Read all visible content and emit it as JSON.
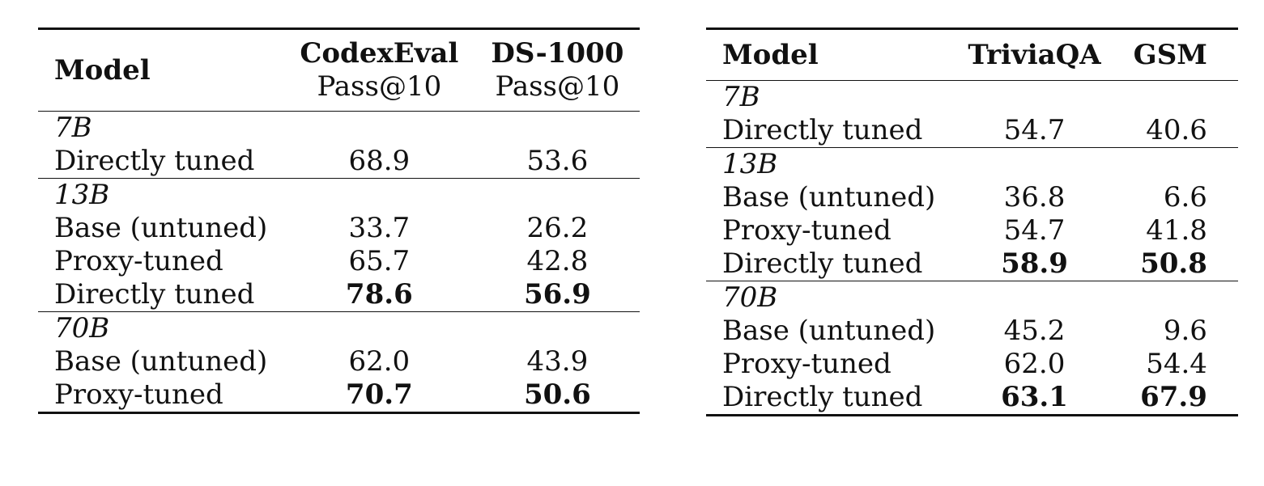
{
  "left_table": {
    "headers": {
      "model": "Model",
      "col1_title": "CodexEval",
      "col1_sub": "Pass@10",
      "col2_title": "DS-1000",
      "col2_sub": "Pass@10"
    },
    "groups": [
      {
        "label": "7B",
        "rows": [
          {
            "name": "Directly tuned",
            "v1": "68.9",
            "v2": "53.6"
          }
        ]
      },
      {
        "label": "13B",
        "rows": [
          {
            "name": "Base (untuned)",
            "v1": "33.7",
            "v2": "26.2"
          },
          {
            "name": "Proxy-tuned",
            "v1": "65.7",
            "v2": "42.8"
          },
          {
            "name": "Directly tuned",
            "v1": "78.6",
            "v2": "56.9"
          }
        ]
      },
      {
        "label": "70B",
        "rows": [
          {
            "name": "Base (untuned)",
            "v1": "62.0",
            "v2": "43.9"
          },
          {
            "name": "Proxy-tuned",
            "v1": "70.7",
            "v2": "50.6"
          }
        ]
      }
    ]
  },
  "right_table": {
    "headers": {
      "model": "Model",
      "col1_title": "TriviaQA",
      "col2_title": "GSM"
    },
    "groups": [
      {
        "label": "7B",
        "rows": [
          {
            "name": "Directly tuned",
            "v1": "54.7",
            "v2": "40.6"
          }
        ]
      },
      {
        "label": "13B",
        "rows": [
          {
            "name": "Base (untuned)",
            "v1": "36.8",
            "v2": "6.6"
          },
          {
            "name": "Proxy-tuned",
            "v1": "54.7",
            "v2": "41.8"
          },
          {
            "name": "Directly tuned",
            "v1": "58.9",
            "v2": "50.8"
          }
        ]
      },
      {
        "label": "70B",
        "rows": [
          {
            "name": "Base (untuned)",
            "v1": "45.2",
            "v2": "9.6"
          },
          {
            "name": "Proxy-tuned",
            "v1": "62.0",
            "v2": "54.4"
          },
          {
            "name": "Directly tuned",
            "v1": "63.1",
            "v2": "67.9"
          }
        ]
      }
    ]
  }
}
